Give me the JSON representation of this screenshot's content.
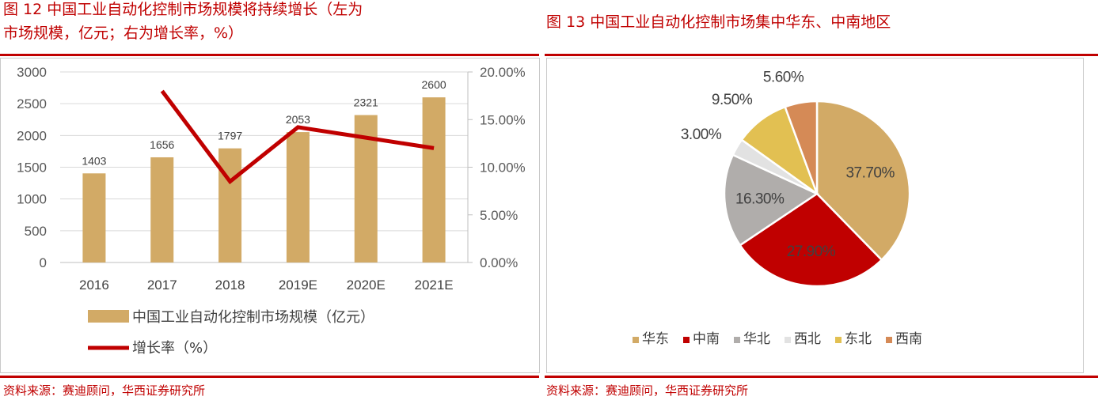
{
  "left": {
    "title_line1": "图 12   中国工业自动化控制市场规模将持续增长（左为",
    "title_line2": "市场规模，亿元；右为增长率，%）",
    "source": "资料来源：赛迪顾问，华西证券研究所"
  },
  "right": {
    "title": "图 13   中国工业自动化控制市场集中华东、中南地区",
    "source": "资料来源：赛迪顾问，华西证券研究所"
  },
  "colors": {
    "accent": "#c00000",
    "bar": "#d2aa66",
    "line": "#c00000"
  },
  "chart_data": [
    {
      "type": "bar",
      "categories": [
        "2016",
        "2017",
        "2018",
        "2019E",
        "2020E",
        "2021E"
      ],
      "series": [
        {
          "name": "中国工业自动化控制市场规模（亿元）",
          "values": [
            1403,
            1656,
            1797,
            2053,
            2321,
            2600
          ],
          "axis": "left",
          "type": "bar"
        },
        {
          "name": "增长率（%）",
          "values": [
            null,
            18.0,
            8.5,
            14.2,
            13.1,
            12.0
          ],
          "axis": "right",
          "type": "line"
        }
      ],
      "ylim": [
        0,
        3000
      ],
      "yticks": [
        "0",
        "500",
        "1000",
        "1500",
        "2000",
        "2500",
        "3000"
      ],
      "y2lim": [
        0,
        20
      ],
      "y2ticks": [
        "0.00%",
        "5.00%",
        "10.00%",
        "15.00%",
        "20.00%"
      ],
      "data_labels": [
        "1403",
        "1656",
        "1797",
        "2053",
        "2321",
        "2600"
      ],
      "legend": "bottom"
    },
    {
      "type": "pie",
      "categories": [
        "华东",
        "中南",
        "华北",
        "西北",
        "东北",
        "西南"
      ],
      "values": [
        37.7,
        27.9,
        16.3,
        3.0,
        9.5,
        5.6
      ],
      "labels": [
        "37.70%",
        "27.90%",
        "16.30%",
        "3.00%",
        "9.50%",
        "5.60%"
      ],
      "colors": [
        "#d2aa66",
        "#c00000",
        "#b0adab",
        "#e2e2e2",
        "#e2c052",
        "#d58a56"
      ],
      "legend": "bottom"
    }
  ]
}
